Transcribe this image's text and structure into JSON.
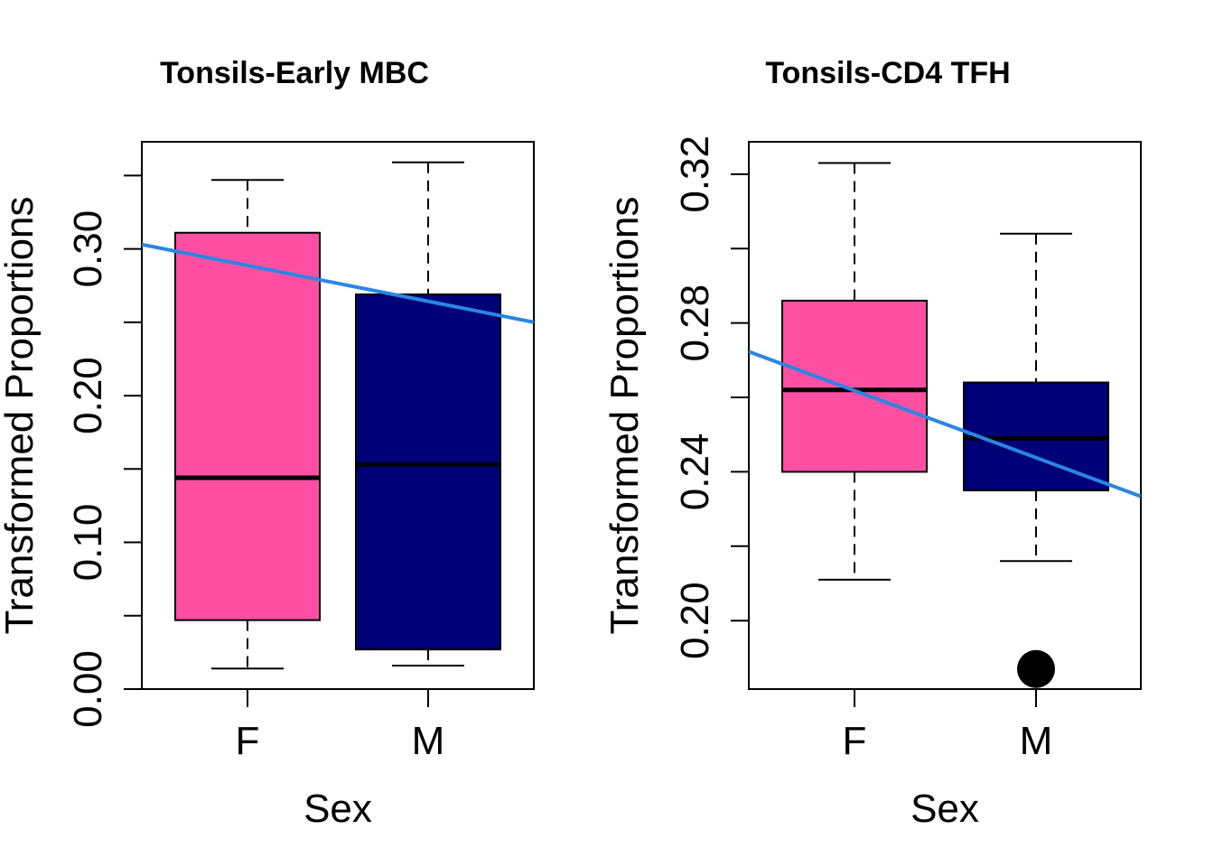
{
  "chart_data": [
    {
      "type": "box",
      "title": "Tonsils-Early MBC",
      "xlabel": "Sex",
      "ylabel": "Transformed Proportions",
      "categories": [
        "F",
        "M"
      ],
      "ylim": [
        0.0,
        0.373
      ],
      "yticks": [
        0.0,
        0.05,
        0.1,
        0.15,
        0.2,
        0.25,
        0.3,
        0.35
      ],
      "ytick_labels": [
        "0.00",
        "",
        "0.10",
        "",
        "0.20",
        "",
        "0.30",
        ""
      ],
      "boxes": [
        {
          "name": "F",
          "color": "#FF4FA3",
          "whisker_low": 0.014,
          "q1": 0.047,
          "median": 0.144,
          "q3": 0.311,
          "whisker_high": 0.347,
          "outliers": []
        },
        {
          "name": "M",
          "color": "#000077",
          "whisker_low": 0.016,
          "q1": 0.027,
          "median": 0.153,
          "q3": 0.269,
          "whisker_high": 0.359,
          "outliers": []
        }
      ],
      "trend_line": {
        "color": "#2A86E2",
        "y_at_left_edge": 0.303,
        "y_at_right_edge": 0.25
      },
      "grid": false
    },
    {
      "type": "box",
      "title": "Tonsils-CD4 TFH",
      "xlabel": "Sex",
      "ylabel": "Transformed Proportions",
      "categories": [
        "F",
        "M"
      ],
      "ylim": [
        0.1816,
        0.3287
      ],
      "yticks": [
        0.2,
        0.22,
        0.24,
        0.26,
        0.28,
        0.3,
        0.32
      ],
      "ytick_labels": [
        "0.20",
        "",
        "0.24",
        "",
        "0.28",
        "",
        "0.32"
      ],
      "boxes": [
        {
          "name": "F",
          "color": "#FF4FA3",
          "whisker_low": 0.211,
          "q1": 0.24,
          "median": 0.262,
          "q3": 0.286,
          "whisker_high": 0.323,
          "outliers": []
        },
        {
          "name": "M",
          "color": "#000077",
          "whisker_low": 0.216,
          "q1": 0.235,
          "median": 0.249,
          "q3": 0.264,
          "whisker_high": 0.304,
          "outliers": [
            0.187
          ]
        }
      ],
      "trend_line": {
        "color": "#2A86E2",
        "y_at_left_edge": 0.2723,
        "y_at_right_edge": 0.2334
      },
      "grid": false
    }
  ]
}
